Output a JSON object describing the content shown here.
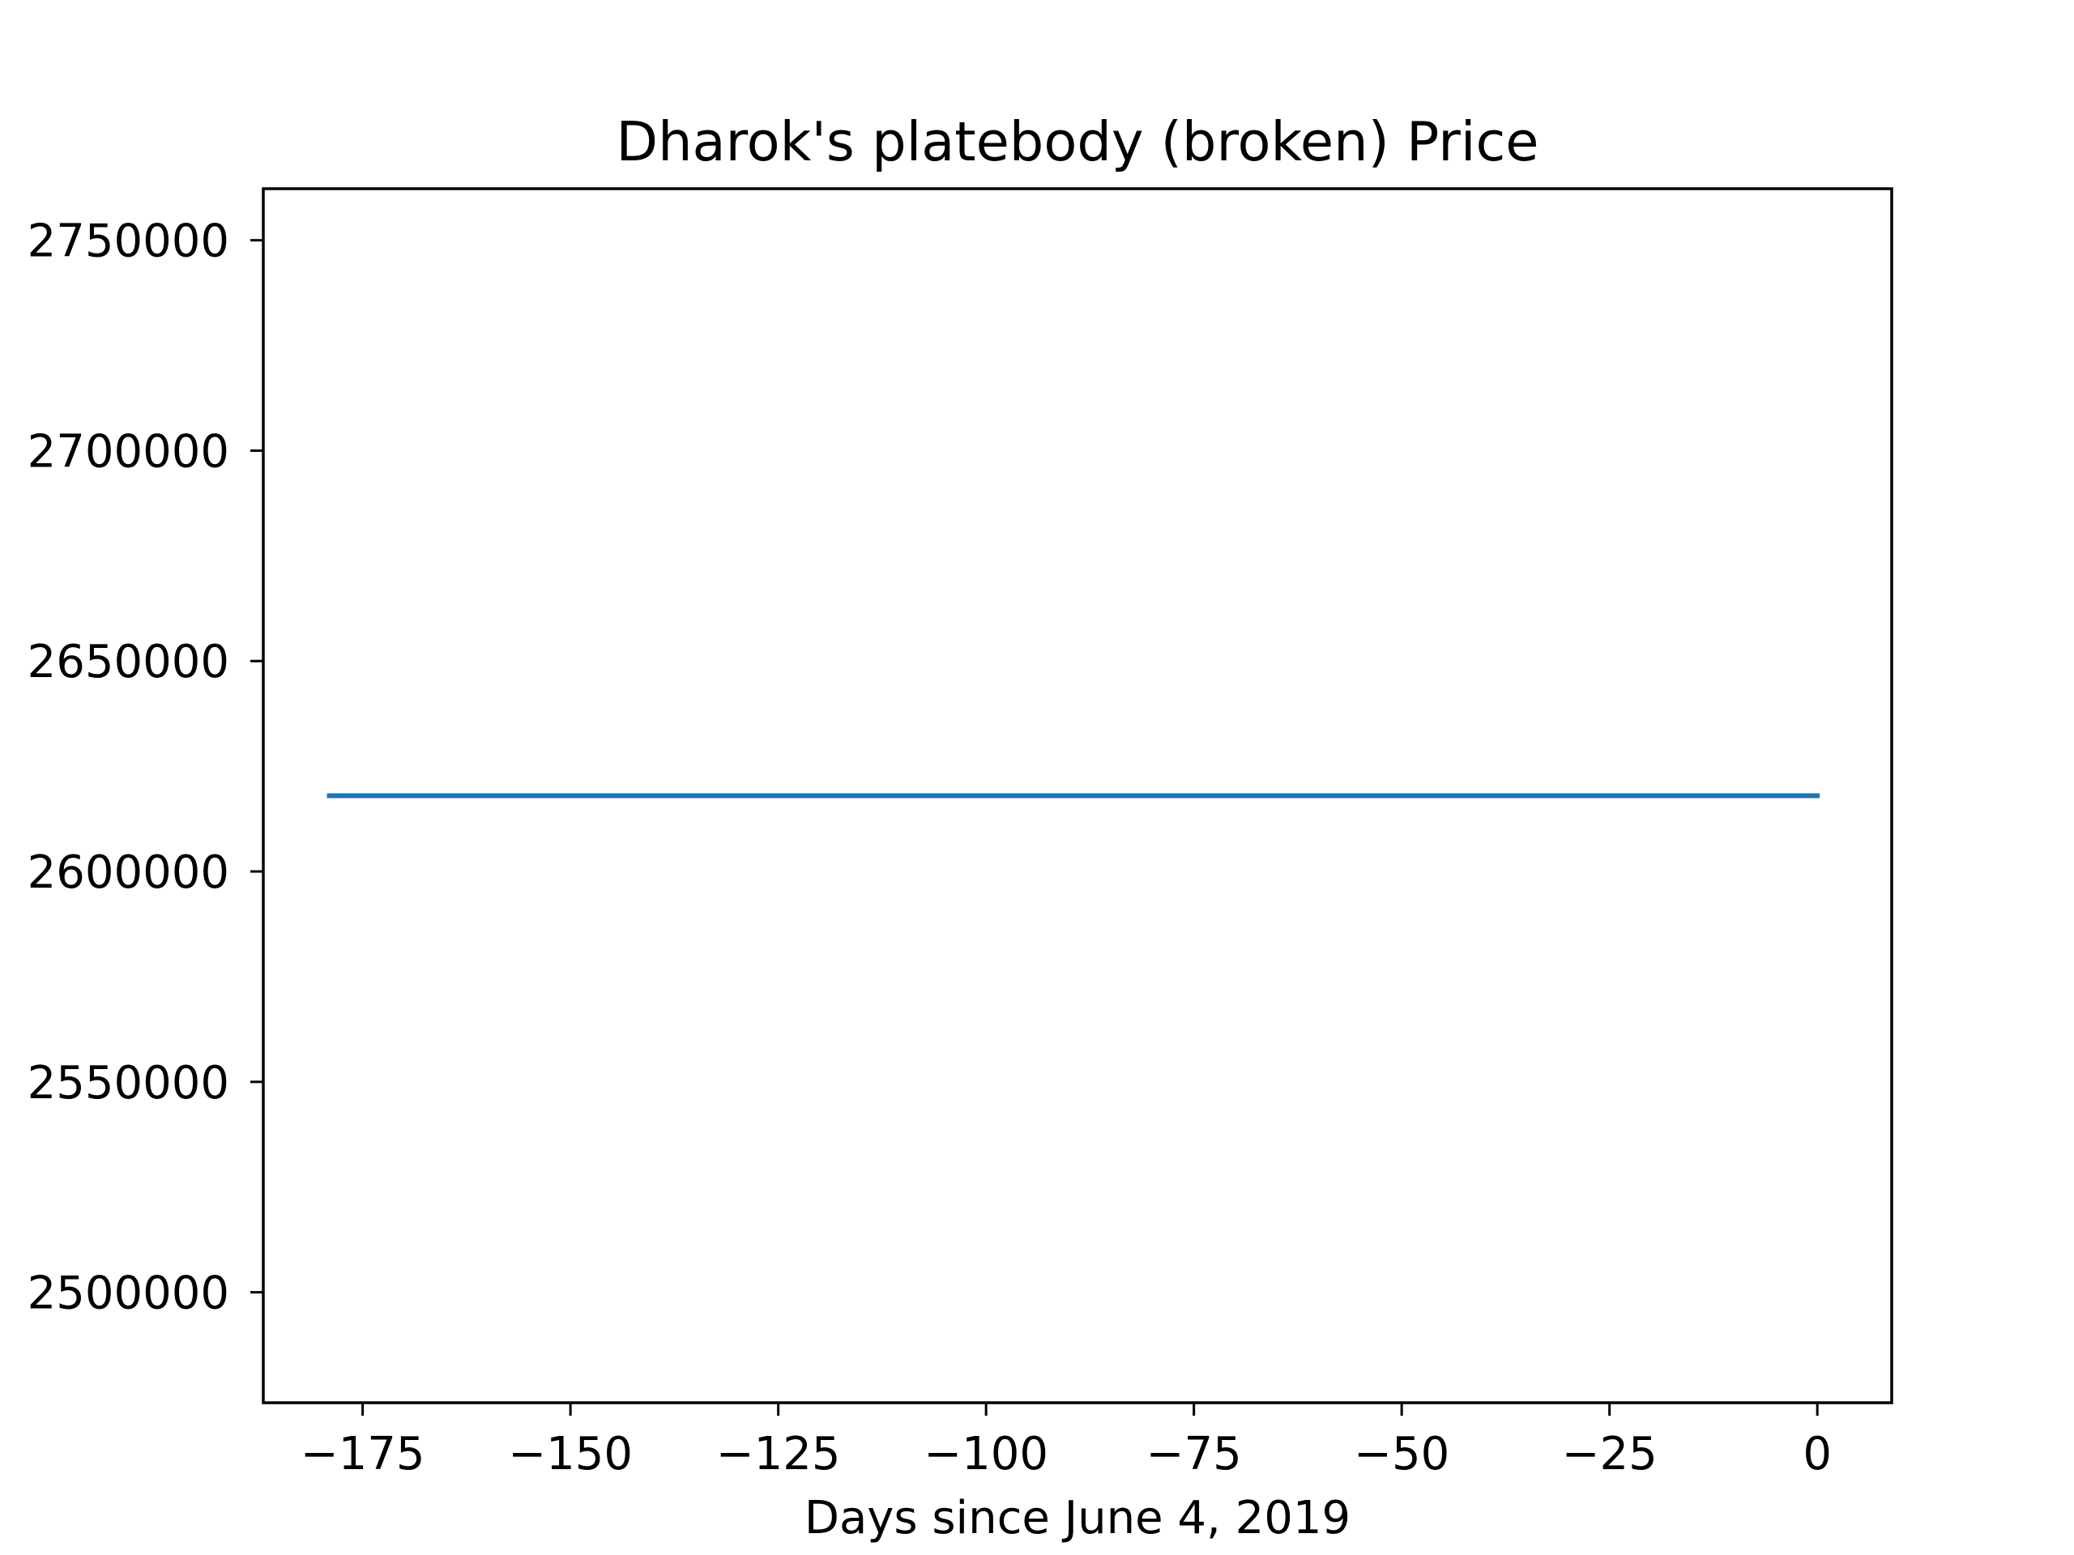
{
  "chart_data": {
    "type": "line",
    "title": "Dharok's platebody (broken) Price",
    "xlabel": "Days since June 4, 2019",
    "ylabel": "",
    "xlim": [
      -186.95,
      8.95
    ],
    "ylim": [
      2473750,
      2762250
    ],
    "xticks": [
      -175,
      -150,
      -125,
      -100,
      -75,
      -50,
      -25,
      0
    ],
    "yticks": [
      2500000,
      2550000,
      2600000,
      2650000,
      2700000,
      2750000
    ],
    "grid": false,
    "series": [
      {
        "color": "#1f77b4",
        "x": [
          -179,
          0
        ],
        "y": [
          2618000,
          2618000
        ]
      }
    ]
  }
}
